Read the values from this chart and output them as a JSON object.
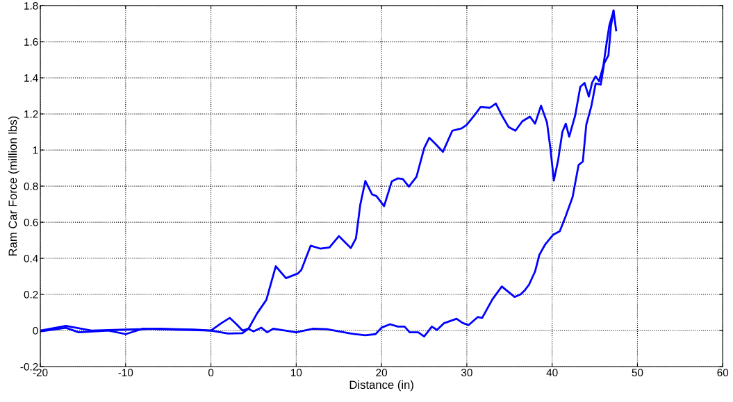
{
  "chart_data": {
    "type": "line",
    "xlabel": "Distance (in)",
    "ylabel": "Ram Car Force (million lbs)",
    "xlim": [
      -20,
      60
    ],
    "xticks": [
      -20,
      -10,
      0,
      10,
      20,
      30,
      40,
      50,
      60
    ],
    "ylim": [
      -0.2,
      1.8
    ],
    "yticks": [
      -0.2,
      0,
      0.2,
      0.4,
      0.6,
      0.8,
      1,
      1.2,
      1.4,
      1.6,
      1.8
    ],
    "grid": true,
    "line_style": "solid",
    "marker": "none",
    "series": [
      {
        "color": "#0000ff",
        "x": [
          -20,
          -17,
          -14,
          -10,
          -6,
          -2,
          0,
          1.2,
          2.2,
          3,
          3.7,
          4.4,
          5.4,
          6.5,
          7.6,
          8.8,
          10.2,
          10.6,
          11.7,
          12.8,
          13.9,
          15,
          16.4,
          17,
          17.5,
          18.1,
          18.9,
          19.4,
          20.3,
          21.2,
          21.9,
          22.5,
          23.2,
          24.1,
          25,
          25.6,
          26.3,
          27.2,
          28.3,
          29.4,
          30,
          31,
          31.6,
          32.7,
          33.4,
          34.1,
          34.9,
          35.7,
          36.5,
          37.4,
          38,
          38.7,
          39.4,
          39.8,
          40.2,
          40.7,
          41.2,
          41.6,
          42,
          42.7,
          43.3,
          43.8,
          44.3,
          44.7,
          45.1,
          45.5,
          46,
          46.4,
          46.7,
          47.1,
          47.2,
          47.5
        ],
        "values": [
          0,
          0.026,
          0,
          0.005,
          0.01,
          0.005,
          0,
          0.04,
          0.07,
          0.035,
          0,
          0.01,
          0.094,
          0.17,
          0.356,
          0.29,
          0.316,
          0.336,
          0.47,
          0.454,
          0.46,
          0.523,
          0.457,
          0.51,
          0.695,
          0.829,
          0.754,
          0.745,
          0.689,
          0.826,
          0.843,
          0.839,
          0.797,
          0.852,
          1.01,
          1.068,
          1.035,
          0.99,
          1.107,
          1.12,
          1.14,
          1.199,
          1.238,
          1.234,
          1.258,
          1.192,
          1.127,
          1.107,
          1.159,
          1.185,
          1.146,
          1.246,
          1.152,
          1.008,
          0.831,
          0.943,
          1.1,
          1.146,
          1.074,
          1.191,
          1.349,
          1.372,
          1.296,
          1.375,
          1.408,
          1.381,
          1.466,
          1.597,
          1.689,
          1.755,
          1.774,
          1.663
        ]
      },
      {
        "color": "#0000ff",
        "x": [
          -20,
          -17,
          -15.5,
          -12,
          -10,
          -8,
          -4,
          0,
          2,
          3.7,
          4.4,
          5,
          5.9,
          6.6,
          7.3,
          10,
          12,
          13.6,
          16.4,
          18.1,
          19.3,
          20,
          21,
          21.9,
          22.7,
          23.3,
          24.3,
          25,
          25.9,
          26.5,
          27.3,
          28.8,
          29.5,
          30.2,
          31.3,
          31.8,
          33,
          34.1,
          35.6,
          36.3,
          36.8,
          37.3,
          38,
          38.5,
          39.2,
          40.1,
          40.9,
          41.6,
          42.4,
          43.1,
          43.6,
          44,
          44.6,
          45.1,
          45.7,
          46.1,
          46.6,
          46.9,
          47.2
        ],
        "values": [
          -0.005,
          0.015,
          -0.01,
          0,
          -0.02,
          0.01,
          0.005,
          0,
          -0.017,
          -0.015,
          0.01,
          -0.005,
          0.016,
          -0.01,
          0.01,
          -0.01,
          0.01,
          0.007,
          -0.017,
          -0.026,
          -0.02,
          0.016,
          0.035,
          0.022,
          0.022,
          -0.01,
          -0.01,
          -0.033,
          0.022,
          0.003,
          0.04,
          0.065,
          0.042,
          0.03,
          0.075,
          0.07,
          0.173,
          0.244,
          0.186,
          0.2,
          0.223,
          0.255,
          0.327,
          0.419,
          0.478,
          0.53,
          0.55,
          0.635,
          0.74,
          0.917,
          0.936,
          1.139,
          1.244,
          1.368,
          1.362,
          1.48,
          1.525,
          1.689,
          1.768
        ]
      }
    ]
  }
}
